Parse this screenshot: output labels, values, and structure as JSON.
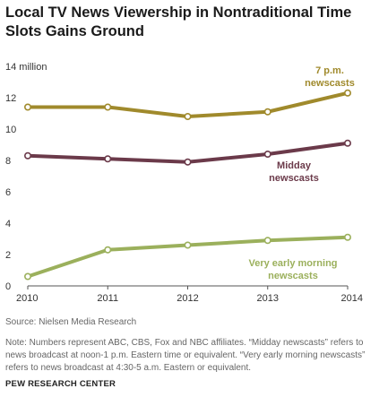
{
  "header": {
    "title": "Local TV News Viewership in Nontraditional Time Slots Gains Ground"
  },
  "chart_data": {
    "type": "line",
    "title": "Local TV News Viewership in Nontraditional Time Slots Gains Ground",
    "xlabel": "",
    "ylabel": "",
    "x": [
      2010,
      2011,
      2012,
      2013,
      2014
    ],
    "xlim": [
      2010,
      2014
    ],
    "ylim": [
      0,
      14
    ],
    "yticks": [
      0,
      2,
      4,
      6,
      8,
      10,
      12,
      14
    ],
    "ytick_labels": [
      "0",
      "2",
      "4",
      "6",
      "8",
      "10",
      "12",
      "14 million"
    ],
    "grid": false,
    "series": [
      {
        "name": "7 p.m. newscasts",
        "label_lines": [
          "7 p.m.",
          "newscasts"
        ],
        "color": "#a08a2c",
        "values": [
          11.4,
          11.4,
          10.8,
          11.1,
          12.3
        ]
      },
      {
        "name": "Midday newscasts",
        "label_lines": [
          "Midday",
          "newscasts"
        ],
        "color": "#6b3a4a",
        "values": [
          8.3,
          8.1,
          7.9,
          8.4,
          9.1
        ]
      },
      {
        "name": "Very early morning newscasts",
        "label_lines": [
          "Very early morning",
          "newscasts"
        ],
        "color": "#9bb05c",
        "values": [
          0.6,
          2.3,
          2.6,
          2.9,
          3.1
        ]
      }
    ]
  },
  "footer": {
    "source": "Source: Nielsen Media Research",
    "note": "Note: Numbers represent ABC, CBS, Fox and NBC affiliates. “Midday newscasts” refers to news broadcast at noon-1 p.m. Eastern time or equivalent. “Very early morning newscasts” refers to news broadcast at 4:30-5 a.m. Eastern or equivalent.",
    "org": "PEW RESEARCH CENTER"
  }
}
